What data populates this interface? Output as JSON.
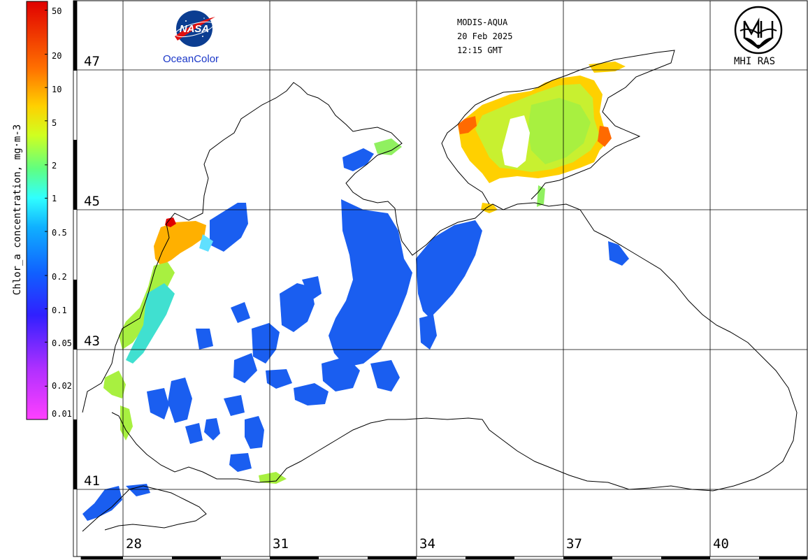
{
  "header": {
    "sensor": "MODIS-AQUA",
    "date": "20 Feb 2025",
    "time": "12:15 GMT"
  },
  "logos": {
    "nasa_label": "OceanColor",
    "nasa_lettering": "NASA",
    "institute_label": "MHI RAS"
  },
  "colorbar": {
    "title": "Chlor_a concentration, mg·m-3",
    "scale": "log",
    "range": [
      0.01,
      60
    ],
    "ticks": [
      "50",
      "20",
      "10",
      "5",
      "2",
      "1",
      "0.5",
      "0.2",
      "0.1",
      "0.05",
      "0.02",
      "0.01"
    ],
    "tick_values": [
      50,
      20,
      10,
      5,
      2,
      1,
      0.5,
      0.2,
      0.1,
      0.05,
      0.02,
      0.01
    ],
    "colors": [
      "#ff40ff",
      "#b030ff",
      "#3020ff",
      "#1060ff",
      "#10b0ff",
      "#30ffff",
      "#60ff80",
      "#d0ff20",
      "#ffd000",
      "#ff7000",
      "#e00000"
    ]
  },
  "grid": {
    "latitudes": [
      "47",
      "45",
      "43",
      "41"
    ],
    "longitudes": [
      "28",
      "31",
      "34",
      "37",
      "40"
    ]
  },
  "colors": {
    "land": "#ffffff",
    "coastline": "#000000",
    "high_chl": "#ffd000",
    "mid_chl": "#a8f040",
    "low_chl": "#1a5ef0"
  }
}
